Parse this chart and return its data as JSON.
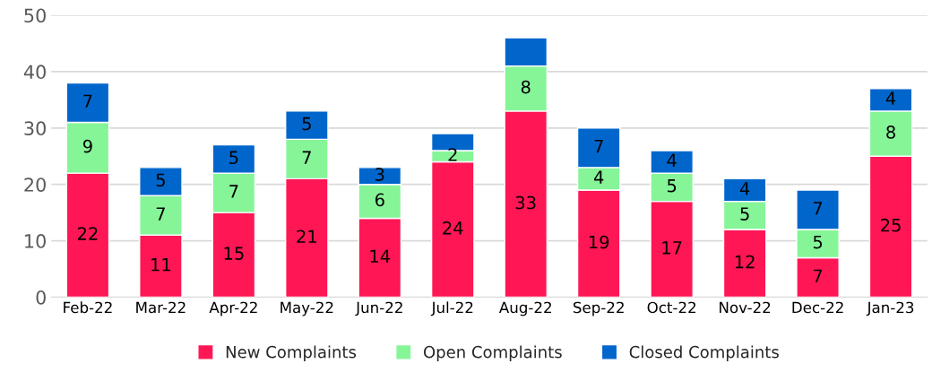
{
  "chart_data": {
    "type": "bar",
    "stacked": true,
    "categories": [
      "Feb-22",
      "Mar-22",
      "Apr-22",
      "May-22",
      "Jun-22",
      "Jul-22",
      "Aug-22",
      "Sep-22",
      "Oct-22",
      "Nov-22",
      "Dec-22",
      "Jan-23"
    ],
    "series": [
      {
        "name": "New Complaints",
        "color": "#ff1654",
        "values": [
          22,
          11,
          15,
          21,
          14,
          24,
          33,
          19,
          17,
          12,
          7,
          25
        ],
        "value_labels": [
          "22",
          "11",
          "15",
          "21",
          "14",
          "24",
          "33",
          "19",
          "17",
          "12",
          "7",
          "25"
        ]
      },
      {
        "name": "Open Complaints",
        "color": "#86f598",
        "values": [
          9,
          7,
          7,
          7,
          6,
          2,
          8,
          4,
          5,
          5,
          5,
          8
        ],
        "value_labels": [
          "9",
          "7",
          "7",
          "7",
          "6",
          "2",
          "8",
          "4",
          "5",
          "5",
          "5",
          "8"
        ]
      },
      {
        "name": "Closed Complaints",
        "color": "#0066cc",
        "values": [
          7,
          5,
          5,
          5,
          3,
          3,
          5,
          7,
          4,
          4,
          7,
          4
        ],
        "value_labels": [
          "7",
          "5",
          "5",
          "5",
          "3",
          null,
          null,
          "7",
          "4",
          "4",
          "7",
          "4"
        ]
      }
    ],
    "ylim": [
      0,
      50
    ],
    "yticks": [
      0,
      10,
      20,
      30,
      40,
      50
    ],
    "grid": "y",
    "legend": "bottom"
  }
}
